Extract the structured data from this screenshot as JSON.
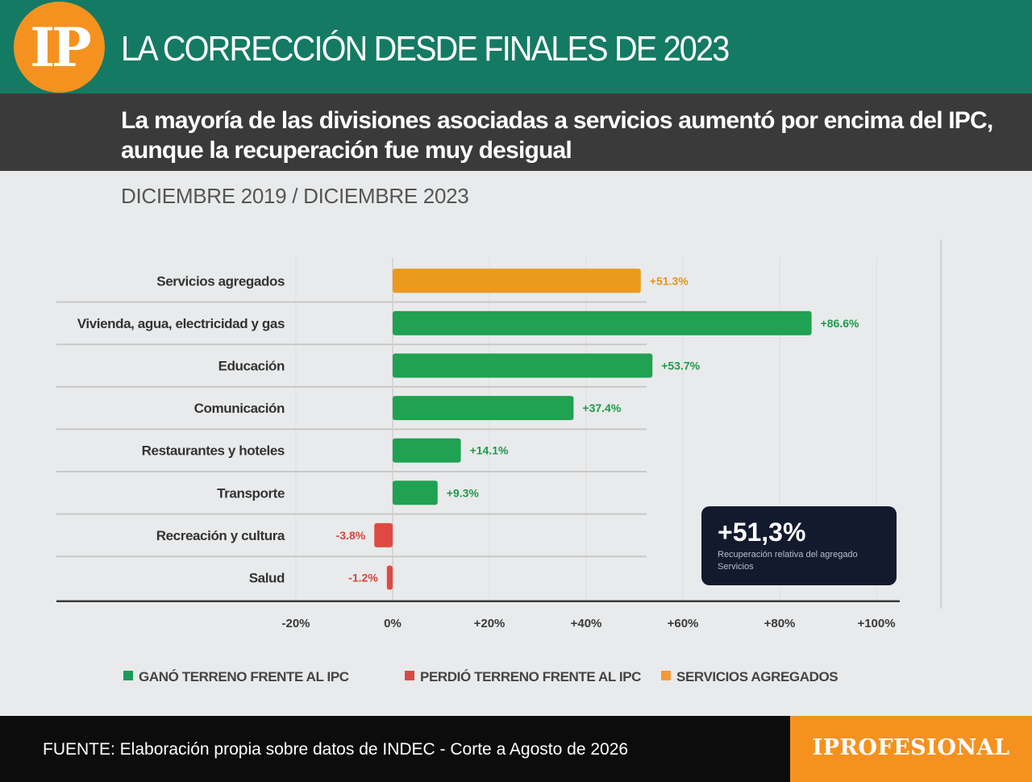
{
  "header": {
    "logo": "IP",
    "title": "LA CORRECCIÓN DESDE FINALES DE 2023"
  },
  "subtitle": "La mayoría de las divisiones asociadas a servicios aumentó por encima del IPC, aunque la recuperación fue muy desigual",
  "period": "DICIEMBRE 2019 / DICIEMBRE 2023",
  "chart_data": {
    "type": "bar",
    "orientation": "horizontal",
    "categories": [
      "Servicios agregados",
      "Vivienda, agua, electricidad y gas",
      "Educación",
      "Comunicación",
      "Restaurantes y hoteles",
      "Transporte",
      "Recreación y cultura",
      "Salud"
    ],
    "values": [
      51.3,
      86.6,
      53.7,
      37.4,
      14.1,
      9.3,
      -3.8,
      -1.2
    ],
    "value_labels": [
      "+51.3%",
      "+86.6%",
      "+53.7%",
      "+37.4%",
      "+14.1%",
      "+9.3%",
      "-3.8%",
      "-1.2%"
    ],
    "groups": [
      "agregado",
      "gano",
      "gano",
      "gano",
      "gano",
      "gano",
      "perdio",
      "perdio"
    ],
    "xlim": [
      -20,
      100
    ],
    "x_ticks": [
      -20,
      0,
      20,
      40,
      60,
      80,
      100
    ],
    "x_tick_labels": [
      "-20%",
      "0%",
      "+20%",
      "+40%",
      "+60%",
      "+80%",
      "+100%"
    ],
    "colors": {
      "gano": "#1fa251",
      "perdio": "#de4a42",
      "agregado": "#eb9a1e"
    },
    "label_colors": {
      "gano": "#1c9a4a",
      "perdio": "#d5433b",
      "agregado": "#e59318"
    },
    "legend": [
      {
        "label": "GANÓ TERRENO FRENTE AL IPC",
        "color": "#1b9a57"
      },
      {
        "label": "PERDIÓ TERRENO FRENTE AL IPC",
        "color": "#d94a45"
      },
      {
        "label": "SERVICIOS AGREGADOS",
        "color": "#f29a3a"
      }
    ],
    "grid": true
  },
  "callout": {
    "value": "+51,3%",
    "description": "Recuperación relativa del agregado Servicios"
  },
  "footer": {
    "source": "FUENTE: Elaboración propia sobre datos de INDEC - Corte a Agosto de 2026",
    "brand": "IPROFESIONAL"
  }
}
